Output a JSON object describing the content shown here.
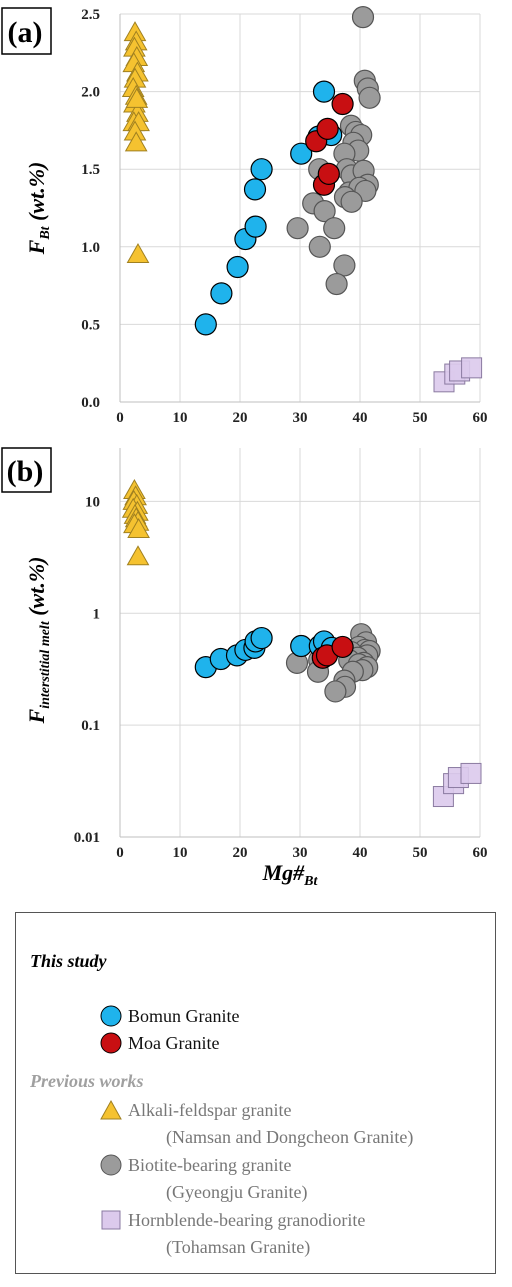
{
  "chart_data": [
    {
      "type": "scatter",
      "panel_label": "(a)",
      "ylabel_main": "F",
      "ylabel_sub": "Bt",
      "ylabel_tail": " (wt.%)",
      "xlim": [
        0,
        60
      ],
      "ylim": [
        0,
        2.5
      ],
      "yscale": "linear",
      "x_ticks": [
        0,
        10,
        20,
        30,
        40,
        50,
        60
      ],
      "y_ticks": [
        0.0,
        0.5,
        1.0,
        1.5,
        2.0,
        2.5
      ],
      "y_tick_labels": [
        "0.0",
        "0.5",
        "1.0",
        "1.5",
        "2.0",
        "2.5"
      ],
      "grid": true,
      "series": [
        {
          "name": "Alkali-feldspar granite",
          "marker": "triangle",
          "color": "#f5c230",
          "points": [
            [
              2.5,
              2.38
            ],
            [
              2.7,
              2.32
            ],
            [
              2.4,
              2.28
            ],
            [
              2.8,
              2.22
            ],
            [
              2.3,
              2.18
            ],
            [
              2.9,
              2.12
            ],
            [
              2.5,
              2.08
            ],
            [
              2.2,
              2.02
            ],
            [
              2.7,
              1.97
            ],
            [
              2.4,
              1.92
            ],
            [
              2.9,
              1.86
            ],
            [
              2.3,
              1.8
            ],
            [
              3.1,
              1.8
            ],
            [
              2.5,
              1.74
            ],
            [
              2.7,
              1.67
            ],
            [
              2.8,
              1.95
            ],
            [
              3.0,
              0.95
            ]
          ]
        },
        {
          "name": "Biotite-bearing granite",
          "marker": "circle",
          "color": "#9b9b9b",
          "points": [
            [
              40.5,
              2.48
            ],
            [
              40.8,
              2.07
            ],
            [
              41.3,
              2.02
            ],
            [
              41.6,
              1.96
            ],
            [
              38.5,
              1.78
            ],
            [
              39.3,
              1.74
            ],
            [
              40.2,
              1.72
            ],
            [
              38.9,
              1.67
            ],
            [
              39.7,
              1.62
            ],
            [
              37.4,
              1.6
            ],
            [
              33.2,
              1.5
            ],
            [
              37.8,
              1.5
            ],
            [
              38.6,
              1.46
            ],
            [
              40.6,
              1.49
            ],
            [
              41.3,
              1.4
            ],
            [
              38.2,
              1.35
            ],
            [
              39.9,
              1.38
            ],
            [
              40.9,
              1.36
            ],
            [
              37.5,
              1.32
            ],
            [
              38.6,
              1.29
            ],
            [
              32.2,
              1.28
            ],
            [
              34.1,
              1.23
            ],
            [
              29.6,
              1.12
            ],
            [
              35.7,
              1.12
            ],
            [
              33.3,
              1.0
            ],
            [
              37.4,
              0.88
            ],
            [
              36.1,
              0.76
            ]
          ]
        },
        {
          "name": "Hornblende-bearing granodiorite",
          "marker": "square",
          "color": "#dccaec",
          "points": [
            [
              54.0,
              0.13
            ],
            [
              55.8,
              0.18
            ],
            [
              56.6,
              0.2
            ],
            [
              58.6,
              0.22
            ]
          ]
        },
        {
          "name": "Bomun Granite",
          "marker": "circle",
          "color": "#1fb3ec",
          "points": [
            [
              14.3,
              0.5
            ],
            [
              16.9,
              0.7
            ],
            [
              19.6,
              0.87
            ],
            [
              20.9,
              1.05
            ],
            [
              22.6,
              1.13
            ],
            [
              22.5,
              1.37
            ],
            [
              23.6,
              1.5
            ],
            [
              30.2,
              1.6
            ],
            [
              33.1,
              1.71
            ],
            [
              35.2,
              1.72
            ],
            [
              34.0,
              2.0
            ]
          ]
        },
        {
          "name": "Moa Granite",
          "marker": "circle",
          "color": "#c80f12",
          "points": [
            [
              34.0,
              1.4
            ],
            [
              34.8,
              1.47
            ],
            [
              32.7,
              1.68
            ],
            [
              34.6,
              1.76
            ],
            [
              37.1,
              1.92
            ]
          ]
        }
      ]
    },
    {
      "type": "scatter",
      "panel_label": "(b)",
      "ylabel_main": "F",
      "ylabel_sub": "interstitial melt",
      "ylabel_tail": " (wt.%)",
      "xlabel_main": "Mg#",
      "xlabel_sub": "Bt",
      "xlim": [
        0,
        60
      ],
      "ylim": [
        0.01,
        30
      ],
      "yscale": "log",
      "x_ticks": [
        0,
        10,
        20,
        30,
        40,
        50,
        60
      ],
      "y_ticks": [
        0.01,
        0.1,
        1,
        10
      ],
      "y_tick_labels": [
        "0.01",
        "0.1",
        "1",
        "10"
      ],
      "grid": true,
      "series": [
        {
          "name": "Alkali-feldspar granite",
          "marker": "triangle",
          "color": "#f5c230",
          "points": [
            [
              2.4,
              12.5
            ],
            [
              2.6,
              11.0
            ],
            [
              2.3,
              10.0
            ],
            [
              2.8,
              9.2
            ],
            [
              2.2,
              8.5
            ],
            [
              2.9,
              8.0
            ],
            [
              2.5,
              7.5
            ],
            [
              2.7,
              7.0
            ],
            [
              3.0,
              6.5
            ],
            [
              2.4,
              6.2
            ],
            [
              3.1,
              5.6
            ],
            [
              3.0,
              3.2
            ]
          ]
        },
        {
          "name": "Biotite-bearing granite",
          "marker": "circle",
          "color": "#9b9b9b",
          "points": [
            [
              40.2,
              0.65
            ],
            [
              41.0,
              0.55
            ],
            [
              39.8,
              0.5
            ],
            [
              40.8,
              0.47
            ],
            [
              41.6,
              0.46
            ],
            [
              38.5,
              0.45
            ],
            [
              41.2,
              0.42
            ],
            [
              39.6,
              0.4
            ],
            [
              38.2,
              0.38
            ],
            [
              40.6,
              0.36
            ],
            [
              33.2,
              0.38
            ],
            [
              29.5,
              0.36
            ],
            [
              39.8,
              0.35
            ],
            [
              41.2,
              0.33
            ],
            [
              40.4,
              0.31
            ],
            [
              38.8,
              0.3
            ],
            [
              33.0,
              0.3
            ],
            [
              37.4,
              0.25
            ],
            [
              37.5,
              0.22
            ],
            [
              35.9,
              0.2
            ]
          ]
        },
        {
          "name": "Hornblende-bearing granodiorite",
          "marker": "square",
          "color": "#dccaec",
          "points": [
            [
              53.9,
              0.023
            ],
            [
              55.6,
              0.03
            ],
            [
              56.4,
              0.034
            ],
            [
              58.5,
              0.037
            ]
          ]
        },
        {
          "name": "Bomun Granite",
          "marker": "circle",
          "color": "#1fb3ec",
          "points": [
            [
              14.3,
              0.33
            ],
            [
              16.8,
              0.39
            ],
            [
              19.5,
              0.42
            ],
            [
              20.9,
              0.47
            ],
            [
              22.4,
              0.49
            ],
            [
              22.6,
              0.56
            ],
            [
              23.6,
              0.6
            ],
            [
              30.2,
              0.51
            ],
            [
              33.3,
              0.51
            ],
            [
              34.0,
              0.56
            ],
            [
              35.3,
              0.49
            ]
          ]
        },
        {
          "name": "Moa Granite",
          "marker": "circle",
          "color": "#c80f12",
          "points": [
            [
              33.8,
              0.4
            ],
            [
              34.5,
              0.42
            ],
            [
              37.1,
              0.5
            ]
          ]
        }
      ]
    }
  ],
  "legend": {
    "this_study": "This study",
    "previous_works": "Previous works",
    "bomun": "Bomun Granite",
    "moa": "Moa Granite",
    "alkali": "Alkali-feldspar granite",
    "alkali_sub": "(Namsan and Dongcheon Granite)",
    "biotite": "Biotite-bearing granite",
    "biotite_sub": "(Gyeongju Granite)",
    "hornblende": "Hornblende-bearing granodiorite",
    "hornblende_sub": "(Tohamsan Granite)"
  }
}
